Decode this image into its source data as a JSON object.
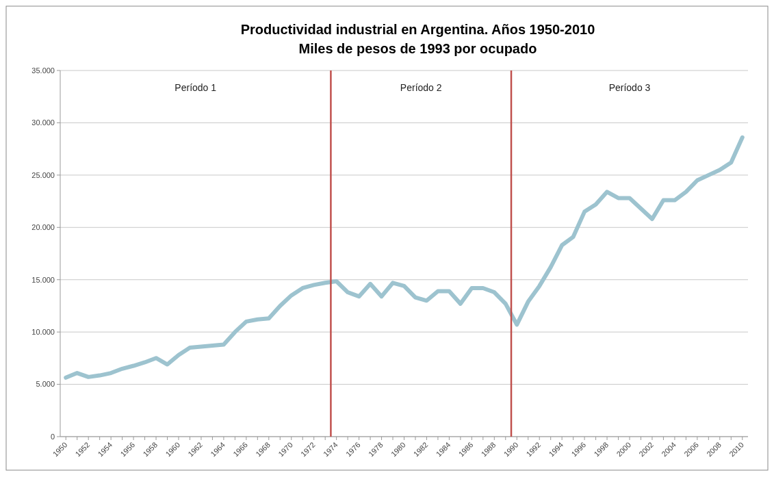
{
  "chart_data": {
    "type": "line",
    "title": "Productividad industrial en Argentina. Años 1950-2010",
    "subtitle": "Miles de pesos de 1993 por ocupado",
    "x": [
      1950,
      1951,
      1952,
      1953,
      1954,
      1955,
      1956,
      1957,
      1958,
      1959,
      1960,
      1961,
      1962,
      1963,
      1964,
      1965,
      1966,
      1967,
      1968,
      1969,
      1970,
      1971,
      1972,
      1973,
      1974,
      1975,
      1976,
      1977,
      1978,
      1979,
      1980,
      1981,
      1982,
      1983,
      1984,
      1985,
      1986,
      1987,
      1988,
      1989,
      1990,
      1991,
      1992,
      1993,
      1994,
      1995,
      1996,
      1997,
      1998,
      1999,
      2000,
      2001,
      2002,
      2003,
      2004,
      2005,
      2006,
      2007,
      2008,
      2009,
      2010
    ],
    "series": [
      {
        "color": "#9dc3cf",
        "values": [
          5640,
          6080,
          5700,
          5850,
          6080,
          6490,
          6770,
          7100,
          7510,
          6900,
          7800,
          8500,
          8600,
          8700,
          8800,
          10000,
          11000,
          11200,
          11300,
          12500,
          13500,
          14200,
          14500,
          14700,
          14850,
          13800,
          13400,
          14600,
          13400,
          14700,
          14400,
          13300,
          13000,
          13900,
          13900,
          12700,
          14200,
          14200,
          13800,
          12700,
          10700,
          12900,
          14400,
          16200,
          18300,
          19100,
          21500,
          22200,
          23400,
          22800,
          22800,
          21800,
          20800,
          22600,
          22600,
          23400,
          24500,
          25000,
          25500,
          26200,
          28600
        ]
      }
    ],
    "xlim": [
      1949.5,
      2010.5
    ],
    "xticks": [
      {
        "value": 1950,
        "label": "1950"
      },
      {
        "value": 1951,
        "label": null
      },
      {
        "value": 1952,
        "label": "1952"
      },
      {
        "value": 1953,
        "label": null
      },
      {
        "value": 1954,
        "label": "1954"
      },
      {
        "value": 1955,
        "label": null
      },
      {
        "value": 1956,
        "label": "1956"
      },
      {
        "value": 1957,
        "label": null
      },
      {
        "value": 1958,
        "label": "1958"
      },
      {
        "value": 1959,
        "label": null
      },
      {
        "value": 1960,
        "label": "1960"
      },
      {
        "value": 1961,
        "label": null
      },
      {
        "value": 1962,
        "label": "1962"
      },
      {
        "value": 1963,
        "label": null
      },
      {
        "value": 1964,
        "label": "1964"
      },
      {
        "value": 1965,
        "label": null
      },
      {
        "value": 1966,
        "label": "1966"
      },
      {
        "value": 1967,
        "label": null
      },
      {
        "value": 1968,
        "label": "1968"
      },
      {
        "value": 1969,
        "label": null
      },
      {
        "value": 1970,
        "label": "1970"
      },
      {
        "value": 1971,
        "label": null
      },
      {
        "value": 1972,
        "label": "1972"
      },
      {
        "value": 1973,
        "label": null
      },
      {
        "value": 1974,
        "label": "1974"
      },
      {
        "value": 1975,
        "label": null
      },
      {
        "value": 1976,
        "label": "1976"
      },
      {
        "value": 1977,
        "label": null
      },
      {
        "value": 1978,
        "label": "1978"
      },
      {
        "value": 1979,
        "label": null
      },
      {
        "value": 1980,
        "label": "1980"
      },
      {
        "value": 1981,
        "label": null
      },
      {
        "value": 1982,
        "label": "1982"
      },
      {
        "value": 1983,
        "label": null
      },
      {
        "value": 1984,
        "label": "1984"
      },
      {
        "value": 1985,
        "label": null
      },
      {
        "value": 1986,
        "label": "1986"
      },
      {
        "value": 1987,
        "label": null
      },
      {
        "value": 1988,
        "label": "1988"
      },
      {
        "value": 1989,
        "label": null
      },
      {
        "value": 1990,
        "label": "1990"
      },
      {
        "value": 1991,
        "label": null
      },
      {
        "value": 1992,
        "label": "1992"
      },
      {
        "value": 1993,
        "label": null
      },
      {
        "value": 1994,
        "label": "1994"
      },
      {
        "value": 1995,
        "label": null
      },
      {
        "value": 1996,
        "label": "1996"
      },
      {
        "value": 1997,
        "label": null
      },
      {
        "value": 1998,
        "label": "1998"
      },
      {
        "value": 1999,
        "label": null
      },
      {
        "value": 2000,
        "label": "2000"
      },
      {
        "value": 2001,
        "label": null
      },
      {
        "value": 2002,
        "label": "2002"
      },
      {
        "value": 2003,
        "label": null
      },
      {
        "value": 2004,
        "label": "2004"
      },
      {
        "value": 2005,
        "label": null
      },
      {
        "value": 2006,
        "label": "2006"
      },
      {
        "value": 2007,
        "label": null
      },
      {
        "value": 2008,
        "label": "2008"
      },
      {
        "value": 2009,
        "label": null
      },
      {
        "value": 2010,
        "label": "2010"
      }
    ],
    "ylim": [
      0,
      35000
    ],
    "yticks": [
      {
        "value": 0,
        "label": "0"
      },
      {
        "value": 5000,
        "label": "5.000"
      },
      {
        "value": 10000,
        "label": "10.000"
      },
      {
        "value": 15000,
        "label": "15.000"
      },
      {
        "value": 20000,
        "label": "20.000"
      },
      {
        "value": 25000,
        "label": "25.000"
      },
      {
        "value": 30000,
        "label": "30.000"
      },
      {
        "value": 35000,
        "label": "35.000"
      }
    ],
    "grid": "y",
    "ref_lines": [
      {
        "axis": "x",
        "value": 1973.5,
        "color": "#c0504d"
      },
      {
        "axis": "x",
        "value": 1989.5,
        "color": "#c0504d"
      }
    ],
    "annotations": [
      "Período 1",
      "Período 2",
      "Período 3"
    ]
  }
}
